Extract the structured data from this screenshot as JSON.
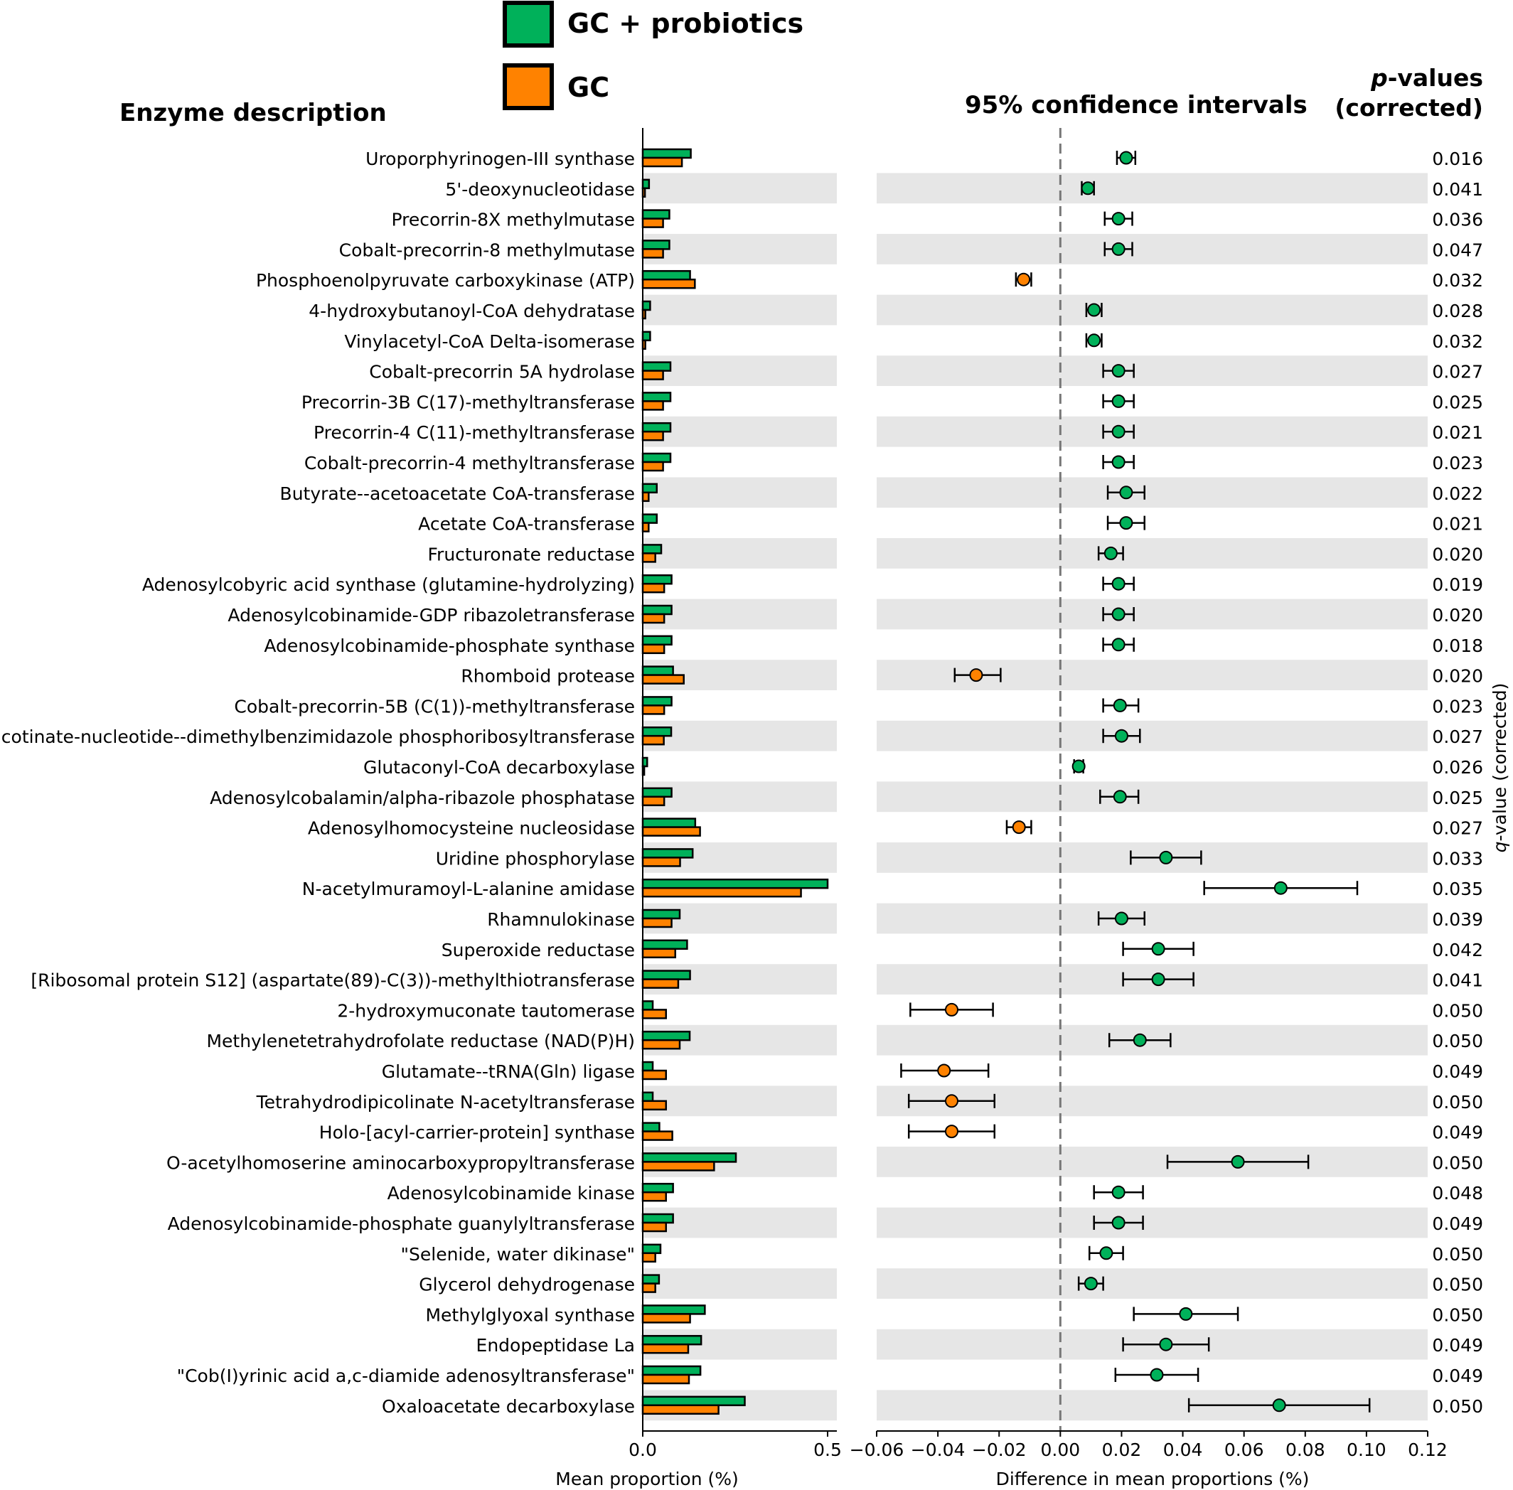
{
  "legend": [
    {
      "label": "GC + probiotics",
      "color": "#00b15a"
    },
    {
      "label": "GC",
      "color": "#ff8200"
    }
  ],
  "headers": {
    "enzyme": "Enzyme description",
    "ci": "95% confidence intervals",
    "pvalue_italic": "p",
    "pvalue_line1_rest": "-values",
    "pvalue_line2": "(corrected)"
  },
  "right_axis_label_italic": "q",
  "right_axis_label_rest": "-value (corrected)",
  "chart_data": [
    {
      "type": "bar",
      "orientation": "horizontal",
      "title": "",
      "xlabel": "Mean proportion (%)",
      "xlim": [
        0,
        0.52
      ],
      "xticks": [
        {
          "v": 0,
          "label": "0.0"
        },
        {
          "v": 0.5,
          "label": "0.5"
        }
      ],
      "series": [
        {
          "name": "GC + probiotics",
          "color": "#00b15a",
          "values": [
            0.13,
            0.017,
            0.072,
            0.072,
            0.128,
            0.02,
            0.02,
            0.075,
            0.075,
            0.075,
            0.075,
            0.038,
            0.038,
            0.05,
            0.078,
            0.078,
            0.078,
            0.082,
            0.078,
            0.077,
            0.012,
            0.078,
            0.142,
            0.135,
            0.5,
            0.1,
            0.12,
            0.128,
            0.027,
            0.127,
            0.027,
            0.027,
            0.045,
            0.252,
            0.082,
            0.082,
            0.048,
            0.044,
            0.168,
            0.158,
            0.156,
            0.276
          ]
        },
        {
          "name": "GC",
          "color": "#ff8200",
          "values": [
            0.106,
            0.006,
            0.055,
            0.055,
            0.141,
            0.007,
            0.007,
            0.055,
            0.055,
            0.055,
            0.055,
            0.016,
            0.016,
            0.034,
            0.058,
            0.058,
            0.058,
            0.111,
            0.058,
            0.057,
            0.004,
            0.058,
            0.155,
            0.101,
            0.428,
            0.078,
            0.088,
            0.096,
            0.063,
            0.1,
            0.063,
            0.063,
            0.08,
            0.193,
            0.063,
            0.063,
            0.034,
            0.034,
            0.128,
            0.123,
            0.125,
            0.205
          ]
        }
      ]
    },
    {
      "type": "scatter",
      "subtype": "errorbar",
      "title": "95% confidence intervals",
      "xlabel": "Difference in mean proportions (%)",
      "xlim": [
        -0.06,
        0.12
      ],
      "xticks": [
        {
          "v": -0.06,
          "label": "−0.06"
        },
        {
          "v": -0.04,
          "label": "−0.04"
        },
        {
          "v": -0.02,
          "label": "−0.02"
        },
        {
          "v": 0,
          "label": "0.00"
        },
        {
          "v": 0.02,
          "label": "0.02"
        },
        {
          "v": 0.04,
          "label": "0.04"
        },
        {
          "v": 0.06,
          "label": "0.06"
        },
        {
          "v": 0.08,
          "label": "0.08"
        },
        {
          "v": 0.1,
          "label": "0.10"
        },
        {
          "v": 0.12,
          "label": "0.12"
        }
      ],
      "reference_line": 0,
      "points": [
        {
          "d": 0.0215,
          "lo": 0.0185,
          "hi": 0.0245
        },
        {
          "d": 0.009,
          "lo": 0.007,
          "hi": 0.011
        },
        {
          "d": 0.019,
          "lo": 0.0145,
          "hi": 0.0235
        },
        {
          "d": 0.019,
          "lo": 0.0145,
          "hi": 0.0235
        },
        {
          "d": -0.012,
          "lo": -0.0145,
          "hi": -0.0095
        },
        {
          "d": 0.011,
          "lo": 0.0085,
          "hi": 0.0135
        },
        {
          "d": 0.011,
          "lo": 0.0085,
          "hi": 0.0135
        },
        {
          "d": 0.019,
          "lo": 0.014,
          "hi": 0.024
        },
        {
          "d": 0.019,
          "lo": 0.014,
          "hi": 0.024
        },
        {
          "d": 0.019,
          "lo": 0.014,
          "hi": 0.024
        },
        {
          "d": 0.019,
          "lo": 0.014,
          "hi": 0.024
        },
        {
          "d": 0.0215,
          "lo": 0.0155,
          "hi": 0.0275
        },
        {
          "d": 0.0215,
          "lo": 0.0155,
          "hi": 0.0275
        },
        {
          "d": 0.0165,
          "lo": 0.0125,
          "hi": 0.0205
        },
        {
          "d": 0.019,
          "lo": 0.014,
          "hi": 0.024
        },
        {
          "d": 0.019,
          "lo": 0.014,
          "hi": 0.024
        },
        {
          "d": 0.019,
          "lo": 0.014,
          "hi": 0.024
        },
        {
          "d": -0.0275,
          "lo": -0.0345,
          "hi": -0.0195
        },
        {
          "d": 0.0195,
          "lo": 0.014,
          "hi": 0.0255
        },
        {
          "d": 0.02,
          "lo": 0.014,
          "hi": 0.026
        },
        {
          "d": 0.006,
          "lo": 0.0045,
          "hi": 0.0075
        },
        {
          "d": 0.0195,
          "lo": 0.013,
          "hi": 0.0255
        },
        {
          "d": -0.0135,
          "lo": -0.0175,
          "hi": -0.0095
        },
        {
          "d": 0.0345,
          "lo": 0.023,
          "hi": 0.046
        },
        {
          "d": 0.072,
          "lo": 0.047,
          "hi": 0.097
        },
        {
          "d": 0.02,
          "lo": 0.0125,
          "hi": 0.0275
        },
        {
          "d": 0.032,
          "lo": 0.0205,
          "hi": 0.0435
        },
        {
          "d": 0.032,
          "lo": 0.0205,
          "hi": 0.0435
        },
        {
          "d": -0.0355,
          "lo": -0.049,
          "hi": -0.022
        },
        {
          "d": 0.026,
          "lo": 0.016,
          "hi": 0.036
        },
        {
          "d": -0.038,
          "lo": -0.052,
          "hi": -0.0235
        },
        {
          "d": -0.0355,
          "lo": -0.0495,
          "hi": -0.0215
        },
        {
          "d": -0.0355,
          "lo": -0.0495,
          "hi": -0.0215
        },
        {
          "d": 0.058,
          "lo": 0.035,
          "hi": 0.081
        },
        {
          "d": 0.019,
          "lo": 0.011,
          "hi": 0.027
        },
        {
          "d": 0.019,
          "lo": 0.011,
          "hi": 0.027
        },
        {
          "d": 0.015,
          "lo": 0.0095,
          "hi": 0.0205
        },
        {
          "d": 0.01,
          "lo": 0.006,
          "hi": 0.014
        },
        {
          "d": 0.041,
          "lo": 0.024,
          "hi": 0.058
        },
        {
          "d": 0.0345,
          "lo": 0.0205,
          "hi": 0.0485
        },
        {
          "d": 0.0315,
          "lo": 0.018,
          "hi": 0.045
        },
        {
          "d": 0.0715,
          "lo": 0.042,
          "hi": 0.101
        }
      ]
    }
  ],
  "rows": [
    {
      "name": "Uroporphyrinogen-III synthase",
      "p": "0.016"
    },
    {
      "name": "5'-deoxynucleotidase",
      "p": "0.041"
    },
    {
      "name": "Precorrin-8X methylmutase",
      "p": "0.036"
    },
    {
      "name": "Cobalt-precorrin-8 methylmutase",
      "p": "0.047"
    },
    {
      "name": "Phosphoenolpyruvate carboxykinase (ATP)",
      "p": "0.032"
    },
    {
      "name": "4-hydroxybutanoyl-CoA dehydratase",
      "p": "0.028"
    },
    {
      "name": "Vinylacetyl-CoA Delta-isomerase",
      "p": "0.032"
    },
    {
      "name": "Cobalt-precorrin 5A hydrolase",
      "p": "0.027"
    },
    {
      "name": "Precorrin-3B C(17)-methyltransferase",
      "p": "0.025"
    },
    {
      "name": "Precorrin-4 C(11)-methyltransferase",
      "p": "0.021"
    },
    {
      "name": "Cobalt-precorrin-4 methyltransferase",
      "p": "0.023"
    },
    {
      "name": "Butyrate--acetoacetate CoA-transferase",
      "p": "0.022"
    },
    {
      "name": "Acetate CoA-transferase",
      "p": "0.021"
    },
    {
      "name": "Fructuronate reductase",
      "p": "0.020"
    },
    {
      "name": "Adenosylcobyric acid synthase (glutamine-hydrolyzing)",
      "p": "0.019"
    },
    {
      "name": "Adenosylcobinamide-GDP ribazoletransferase",
      "p": "0.020"
    },
    {
      "name": "Adenosylcobinamide-phosphate synthase",
      "p": "0.018"
    },
    {
      "name": "Rhomboid protease",
      "p": "0.020"
    },
    {
      "name": "Cobalt-precorrin-5B (C(1))-methyltransferase",
      "p": "0.023"
    },
    {
      "name": "Nicotinate-nucleotide--dimethylbenzimidazole phosphoribosyltransferase",
      "p": "0.027"
    },
    {
      "name": "Glutaconyl-CoA decarboxylase",
      "p": "0.026"
    },
    {
      "name": "Adenosylcobalamin/alpha-ribazole phosphatase",
      "p": "0.025"
    },
    {
      "name": "Adenosylhomocysteine nucleosidase",
      "p": "0.027"
    },
    {
      "name": "Uridine phosphorylase",
      "p": "0.033"
    },
    {
      "name": "N-acetylmuramoyl-L-alanine amidase",
      "p": "0.035"
    },
    {
      "name": "Rhamnulokinase",
      "p": "0.039"
    },
    {
      "name": "Superoxide reductase",
      "p": "0.042"
    },
    {
      "name": "[Ribosomal protein S12] (aspartate(89)-C(3))-methylthiotransferase",
      "p": "0.041"
    },
    {
      "name": "2-hydroxymuconate tautomerase",
      "p": "0.050"
    },
    {
      "name": "Methylenetetrahydrofolate reductase (NAD(P)H)",
      "p": "0.050"
    },
    {
      "name": "Glutamate--tRNA(Gln) ligase",
      "p": "0.049"
    },
    {
      "name": "Tetrahydrodipicolinate N-acetyltransferase",
      "p": "0.050"
    },
    {
      "name": "Holo-[acyl-carrier-protein] synthase",
      "p": "0.049"
    },
    {
      "name": "O-acetylhomoserine aminocarboxypropyltransferase",
      "p": "0.050"
    },
    {
      "name": "Adenosylcobinamide kinase",
      "p": "0.048"
    },
    {
      "name": "Adenosylcobinamide-phosphate guanylyltransferase",
      "p": "0.049"
    },
    {
      "name": "\"Selenide, water dikinase\"",
      "p": "0.050"
    },
    {
      "name": "Glycerol dehydrogenase",
      "p": "0.050"
    },
    {
      "name": "Methylglyoxal synthase",
      "p": "0.050"
    },
    {
      "name": "Endopeptidase La",
      "p": "0.049"
    },
    {
      "name": "\"Cob(I)yrinic acid a,c-diamide adenosyltransferase\"",
      "p": "0.049"
    },
    {
      "name": "Oxaloacetate decarboxylase",
      "p": "0.050"
    }
  ]
}
